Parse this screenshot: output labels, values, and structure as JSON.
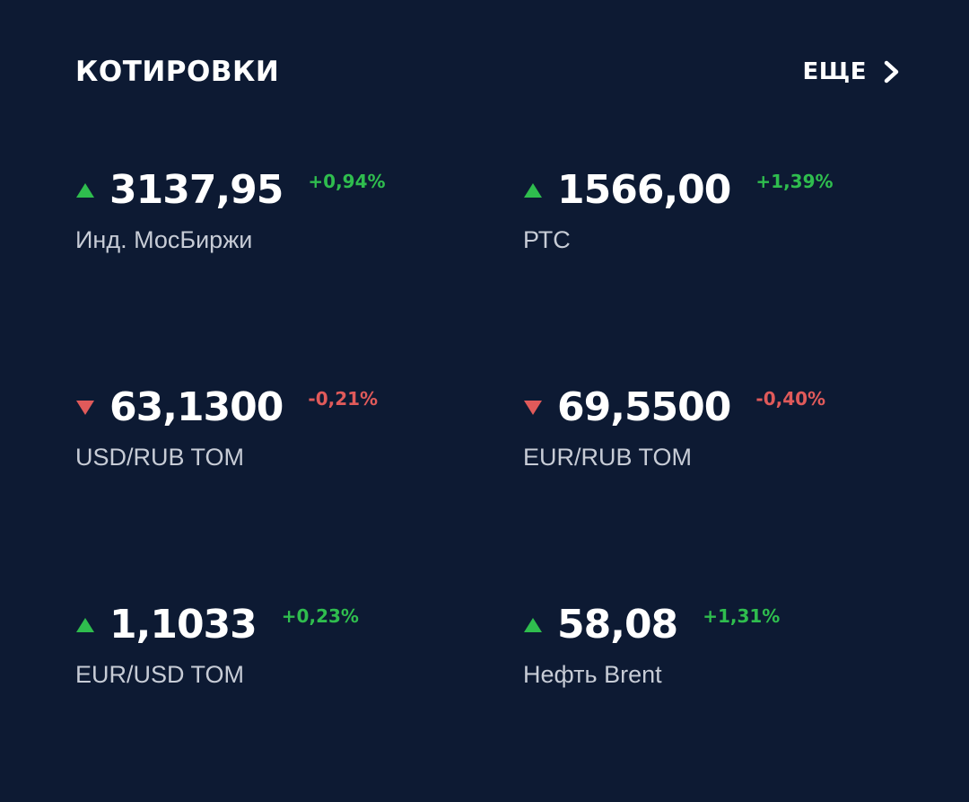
{
  "header": {
    "title": "КОТИРОВКИ",
    "more_label": "ЕЩЕ",
    "more_icon": "chevron-right-icon"
  },
  "colors": {
    "background": "#0d1a33",
    "up": "#2fbd4e",
    "down": "#e05a5a",
    "text": "#ffffff",
    "label": "#c7ccd6"
  },
  "quotes": [
    {
      "value": "3137,95",
      "change": "+0,94%",
      "direction": "up",
      "label": "Инд. МосБиржи"
    },
    {
      "value": "1566,00",
      "change": "+1,39%",
      "direction": "up",
      "label": "РТС"
    },
    {
      "value": "63,1300",
      "change": "-0,21%",
      "direction": "down",
      "label": "USD/RUB TOM"
    },
    {
      "value": "69,5500",
      "change": "-0,40%",
      "direction": "down",
      "label": "EUR/RUB TOM"
    },
    {
      "value": "1,1033",
      "change": "+0,23%",
      "direction": "up",
      "label": "EUR/USD TOM"
    },
    {
      "value": "58,08",
      "change": "+1,31%",
      "direction": "up",
      "label": "Нефть Brent"
    }
  ]
}
